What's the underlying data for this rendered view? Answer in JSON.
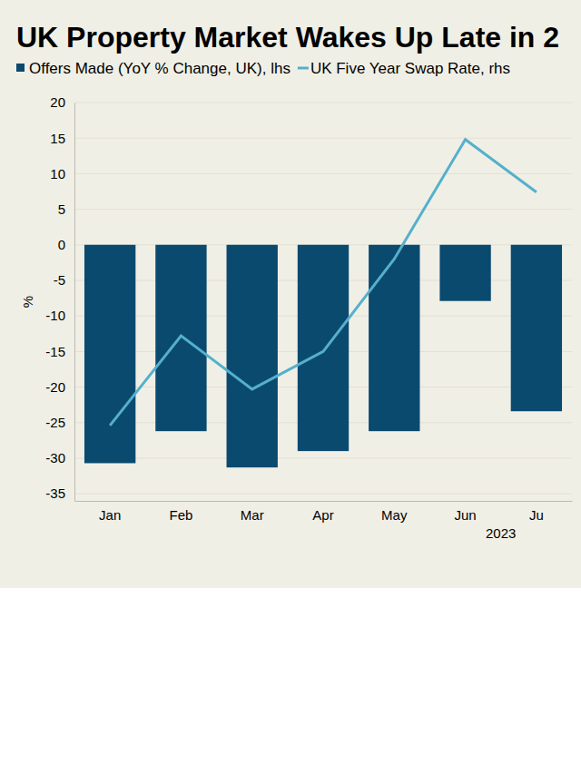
{
  "chart_data": {
    "type": "bar",
    "title": "UK Property Market Wakes Up Late in 2",
    "ylabel": "%",
    "xlabel": "2023",
    "categories": [
      "Jan",
      "Feb",
      "Mar",
      "Apr",
      "May",
      "Jun",
      "Ju"
    ],
    "series": [
      {
        "name": "Offers Made (YoY % Change, UK), lhs",
        "type": "bar",
        "color": "#0b4a6f",
        "values": [
          -30.7,
          -26.2,
          -31.3,
          -29.0,
          -26.2,
          -7.9,
          -23.4
        ]
      },
      {
        "name": "UK Five Year Swap Rate, rhs",
        "type": "line",
        "color": "#55b0cc",
        "values": [
          -25.4,
          -12.8,
          -20.3,
          -15.0,
          -2.0,
          14.8,
          7.4
        ]
      }
    ],
    "ylim": [
      -36,
      20
    ],
    "yticks": [
      -35,
      -30,
      -25,
      -20,
      -15,
      -10,
      -5,
      0,
      5,
      10,
      15,
      20
    ],
    "grid": true,
    "legend": "top"
  }
}
